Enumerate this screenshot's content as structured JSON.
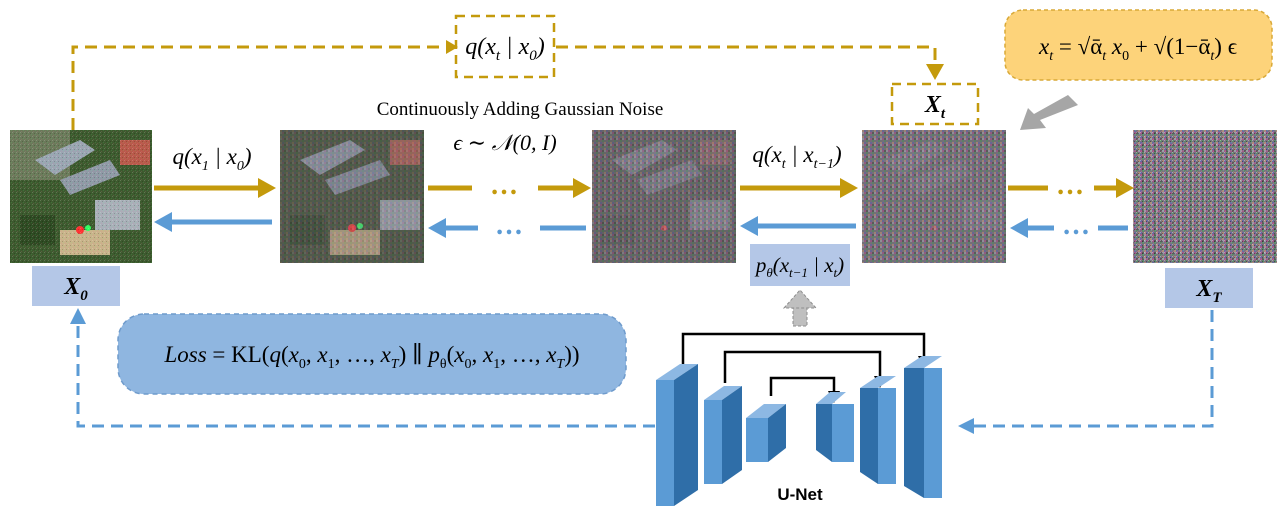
{
  "caption_top": "Continuously Adding Gaussian Noise",
  "noise_dist": "ϵ ∼ 𝒩(0, I)",
  "forward_q_top": "q(x_t | x_0)",
  "forward_q1": "q(x_1 | x_0)",
  "forward_qt": "q(x_t | x_{t−1})",
  "reverse_p": "p_θ(x_{t−1} | x_t)",
  "xt_formula": "x_t = √(ᾱ_t) x_0 + √(1−ᾱ_t) ϵ",
  "loss": "Loss = KL(q(x_0, x_1, …, x_T) ∥ p_θ(x_0, x_1, …, x_T))",
  "labels": {
    "x0": "X_0",
    "xt": "X_t",
    "xT": "X_T",
    "unet": "U-Net"
  },
  "ellipsis": "…",
  "colors": {
    "forward": "#c49a0c",
    "reverse": "#5b9bd5",
    "unet_face": "#5b9bd5",
    "unet_side": "#2f6ea8",
    "unet_top": "#8db8e3",
    "label_box": "#b4c7e7",
    "formula_box": "#fdd37a",
    "loss_box": "#8fb6e0",
    "gray_arrow": "#a6a6a6"
  }
}
